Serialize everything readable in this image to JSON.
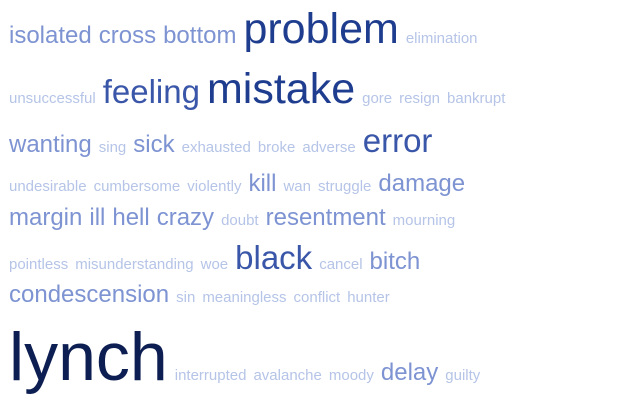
{
  "cloud": {
    "lines": [
      [
        {
          "text": "isolated",
          "weight": 3
        },
        {
          "text": "cross",
          "weight": 3
        },
        {
          "text": "bottom",
          "weight": 3
        },
        {
          "text": "problem",
          "weight": 6
        },
        {
          "text": "elimination",
          "weight": 1
        }
      ],
      [
        {
          "text": "unsuccessful",
          "weight": 1
        },
        {
          "text": "feeling",
          "weight": 5
        },
        {
          "text": "mistake",
          "weight": 6
        },
        {
          "text": "gore",
          "weight": 1
        },
        {
          "text": "resign",
          "weight": 1
        },
        {
          "text": "bankrupt",
          "weight": 1
        }
      ],
      [
        {
          "text": "wanting",
          "weight": 3
        },
        {
          "text": "sing",
          "weight": 1
        },
        {
          "text": "sick",
          "weight": 3
        },
        {
          "text": "exhausted",
          "weight": 1
        },
        {
          "text": "broke",
          "weight": 1
        },
        {
          "text": "adverse",
          "weight": 1
        },
        {
          "text": "error",
          "weight": 5
        }
      ],
      [
        {
          "text": "undesirable",
          "weight": 1
        },
        {
          "text": "cumbersome",
          "weight": 1
        },
        {
          "text": "violently",
          "weight": 1
        },
        {
          "text": "kill",
          "weight": 3
        },
        {
          "text": "wan",
          "weight": 1
        },
        {
          "text": "struggle",
          "weight": 1
        },
        {
          "text": "damage",
          "weight": 3
        }
      ],
      [
        {
          "text": "margin",
          "weight": 3
        },
        {
          "text": "ill",
          "weight": 3
        },
        {
          "text": "hell",
          "weight": 3
        },
        {
          "text": "crazy",
          "weight": 3
        },
        {
          "text": "doubt",
          "weight": 1
        },
        {
          "text": "resentment",
          "weight": 3
        },
        {
          "text": "mourning",
          "weight": 1
        }
      ],
      [
        {
          "text": "pointless",
          "weight": 1
        },
        {
          "text": "misunderstanding",
          "weight": 1
        },
        {
          "text": "woe",
          "weight": 1
        },
        {
          "text": "black",
          "weight": 5
        },
        {
          "text": "cancel",
          "weight": 1
        },
        {
          "text": "bitch",
          "weight": 3
        }
      ],
      [
        {
          "text": "condescension",
          "weight": 3
        },
        {
          "text": "sin",
          "weight": 1
        },
        {
          "text": "meaningless",
          "weight": 1
        },
        {
          "text": "conflict",
          "weight": 1
        },
        {
          "text": "hunter",
          "weight": 1
        }
      ],
      [
        {
          "text": "lynch",
          "weight": 7
        },
        {
          "text": "interrupted",
          "weight": 1
        },
        {
          "text": "avalanche",
          "weight": 1
        },
        {
          "text": "moody",
          "weight": 1
        },
        {
          "text": "delay",
          "weight": 3
        },
        {
          "text": "guilty",
          "weight": 1
        }
      ]
    ],
    "weight_colors": {
      "1": "#b5c4e7",
      "3": "#7d93d2",
      "5": "#3a56a8",
      "6": "#1f3d8f",
      "7": "#0d1e52"
    }
  }
}
